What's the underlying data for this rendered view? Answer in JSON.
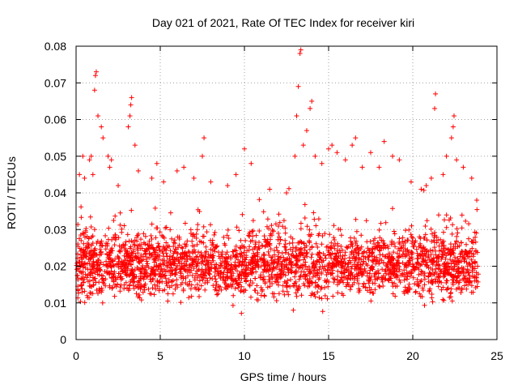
{
  "chart_data": {
    "type": "scatter",
    "title": "Day 021 of 2021, Rate Of TEC Index for receiver kiri",
    "xlabel": "GPS time / hours",
    "ylabel": "ROTI / TECUs",
    "xlim": [
      0,
      25
    ],
    "ylim": [
      0,
      0.08
    ],
    "x_ticks": [
      "0",
      "5",
      "10",
      "15",
      "20",
      "25"
    ],
    "y_ticks": [
      "0",
      "0.01",
      "0.02",
      "0.03",
      "0.04",
      "0.05",
      "0.06",
      "0.07",
      "0.08"
    ],
    "grid": true,
    "marker": "+",
    "color": "#ff0000",
    "series": [
      {
        "points": [
          [
            0.2,
            0.045
          ],
          [
            0.4,
            0.05
          ],
          [
            0.5,
            0.044
          ],
          [
            0.8,
            0.049
          ],
          [
            0.9,
            0.05
          ],
          [
            1.0,
            0.045
          ],
          [
            1.1,
            0.068
          ],
          [
            1.15,
            0.072
          ],
          [
            1.2,
            0.073
          ],
          [
            1.3,
            0.061
          ],
          [
            1.5,
            0.058
          ],
          [
            1.6,
            0.055
          ],
          [
            1.9,
            0.05
          ],
          [
            2.0,
            0.047
          ],
          [
            2.1,
            0.049
          ],
          [
            2.5,
            0.042
          ],
          [
            3.1,
            0.058
          ],
          [
            3.2,
            0.061
          ],
          [
            3.25,
            0.064
          ],
          [
            3.3,
            0.066
          ],
          [
            3.5,
            0.053
          ],
          [
            3.7,
            0.046
          ],
          [
            4.5,
            0.044
          ],
          [
            4.8,
            0.048
          ],
          [
            5.2,
            0.043
          ],
          [
            6.0,
            0.046
          ],
          [
            6.4,
            0.047
          ],
          [
            7.0,
            0.044
          ],
          [
            7.5,
            0.05
          ],
          [
            7.6,
            0.055
          ],
          [
            8.0,
            0.043
          ],
          [
            9.0,
            0.042
          ],
          [
            9.5,
            0.045
          ],
          [
            10.0,
            0.052
          ],
          [
            10.4,
            0.048
          ],
          [
            11.5,
            0.041
          ],
          [
            12.5,
            0.04
          ],
          [
            13.0,
            0.05
          ],
          [
            13.1,
            0.061
          ],
          [
            13.2,
            0.069
          ],
          [
            13.3,
            0.078
          ],
          [
            13.35,
            0.079
          ],
          [
            13.5,
            0.053
          ],
          [
            13.7,
            0.057
          ],
          [
            13.9,
            0.063
          ],
          [
            14.0,
            0.065
          ],
          [
            14.2,
            0.05
          ],
          [
            14.6,
            0.048
          ],
          [
            15.0,
            0.052
          ],
          [
            15.2,
            0.053
          ],
          [
            15.5,
            0.051
          ],
          [
            16.0,
            0.049
          ],
          [
            16.4,
            0.053
          ],
          [
            16.6,
            0.055
          ],
          [
            17.0,
            0.047
          ],
          [
            17.5,
            0.051
          ],
          [
            18.0,
            0.047
          ],
          [
            18.3,
            0.054
          ],
          [
            18.8,
            0.05
          ],
          [
            19.2,
            0.049
          ],
          [
            19.9,
            0.043
          ],
          [
            20.5,
            0.041
          ],
          [
            20.8,
            0.042
          ],
          [
            21.1,
            0.044
          ],
          [
            21.3,
            0.063
          ],
          [
            21.35,
            0.067
          ],
          [
            21.8,
            0.045
          ],
          [
            22.0,
            0.05
          ],
          [
            22.3,
            0.055
          ],
          [
            22.4,
            0.058
          ],
          [
            22.45,
            0.061
          ],
          [
            22.6,
            0.049
          ],
          [
            23.0,
            0.047
          ],
          [
            23.5,
            0.044
          ],
          [
            23.8,
            0.038
          ]
        ]
      }
    ]
  }
}
